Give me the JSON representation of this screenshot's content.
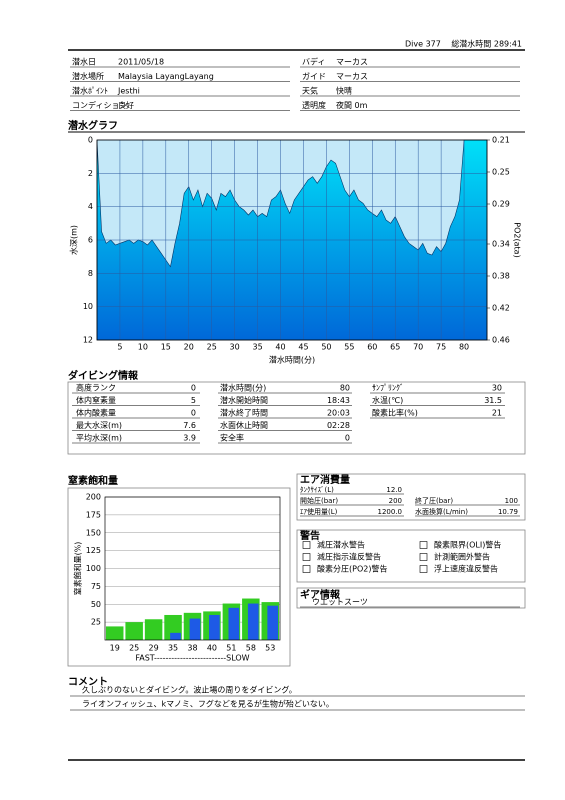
{
  "header": {
    "dive": "Dive 377",
    "total": "総潜水時間 289:41"
  },
  "info": {
    "left": [
      {
        "label": "潜水日",
        "value": "2011/05/18"
      },
      {
        "label": "潜水場所",
        "value": "Malaysia LayangLayang"
      },
      {
        "label": "潜水ﾎﾟｲﾝﾄ",
        "value": "Jesthi"
      },
      {
        "label": "コンディション",
        "value": "良好"
      }
    ],
    "right": [
      {
        "label": "バディ",
        "value": "マーカス"
      },
      {
        "label": "ガイド",
        "value": "マーカス"
      },
      {
        "label": "天気",
        "value": "快晴"
      },
      {
        "label": "透明度",
        "value": "夜間  0m"
      }
    ]
  },
  "dive_graph": {
    "type": "area",
    "title": "潜水グラフ",
    "xlabel": "潜水時間(分)",
    "ylabel": "水深(m)",
    "y2label": "PO2(ata)",
    "invert_y": true,
    "grid": true,
    "x": [
      0,
      1,
      2,
      3,
      4,
      5,
      6,
      7,
      8,
      9,
      10,
      11,
      12,
      13,
      14,
      15,
      16,
      17,
      18,
      19,
      20,
      21,
      22,
      23,
      24,
      25,
      26,
      27,
      28,
      29,
      30,
      31,
      32,
      33,
      34,
      35,
      36,
      37,
      38,
      39,
      40,
      41,
      42,
      43,
      44,
      45,
      46,
      47,
      48,
      49,
      50,
      51,
      52,
      53,
      54,
      55,
      56,
      57,
      58,
      59,
      60,
      61,
      62,
      63,
      64,
      65,
      66,
      67,
      68,
      69,
      70,
      71,
      72,
      73,
      74,
      75,
      76,
      77,
      78,
      79,
      80,
      81,
      82,
      83,
      84,
      85
    ],
    "values": [
      0,
      5.5,
      6.2,
      6.0,
      6.3,
      6.2,
      6.1,
      6.0,
      6.2,
      6.0,
      6.1,
      6.3,
      6.0,
      6.4,
      6.8,
      7.2,
      7.6,
      6.2,
      5.0,
      3.2,
      2.8,
      3.6,
      3.0,
      4.0,
      3.2,
      3.5,
      4.2,
      3.2,
      3.4,
      3.0,
      3.6,
      4.0,
      4.2,
      4.5,
      4.2,
      4.6,
      4.4,
      4.6,
      3.6,
      3.4,
      3.0,
      3.8,
      4.4,
      3.6,
      3.2,
      2.8,
      2.4,
      2.2,
      2.6,
      2.2,
      1.6,
      1.2,
      1.4,
      2.2,
      3.0,
      3.4,
      3.0,
      3.6,
      3.8,
      4.2,
      4.4,
      4.6,
      4.2,
      4.8,
      5.0,
      4.6,
      5.2,
      5.8,
      6.2,
      6.4,
      6.6,
      6.2,
      6.8,
      6.9,
      6.4,
      6.7,
      6.2,
      5.2,
      4.6,
      3.6,
      0,
      0,
      0,
      0,
      0,
      0
    ],
    "xlim": [
      0,
      85
    ],
    "xticks": [
      5,
      10,
      15,
      20,
      25,
      30,
      35,
      40,
      45,
      50,
      55,
      60,
      65,
      70,
      75,
      80
    ],
    "ylim": [
      0,
      12
    ],
    "yticks": [
      0,
      2,
      4,
      6,
      8,
      10,
      12
    ],
    "y2lim": [
      0.21,
      0.46
    ],
    "y2ticks": [
      0.21,
      0.25,
      0.29,
      0.34,
      0.38,
      0.42,
      0.46
    ]
  },
  "dive_info": {
    "title": "ダイビング情報",
    "columns": [
      [
        {
          "label": "高度ランク",
          "value": 0
        },
        {
          "label": "体内窒素量",
          "value": 5
        },
        {
          "label": "体内酸素量",
          "value": 0
        },
        {
          "label": "最大水深(m)",
          "value": 7.6
        },
        {
          "label": "平均水深(m)",
          "value": 3.9
        }
      ],
      [
        {
          "label": "潜水時間(分)",
          "value": 80
        },
        {
          "label": "潜水開始時間",
          "value": "18:43"
        },
        {
          "label": "潜水終了時間",
          "value": "20:03"
        },
        {
          "label": "水面休止時間",
          "value": "02:28"
        },
        {
          "label": "安全率",
          "value": 0
        }
      ],
      [
        {
          "label": "ｻﾝﾌﾟﾘﾝｸﾞ",
          "value": 30
        },
        {
          "label": "水温(℃)",
          "value": 31.5
        },
        {
          "label": "酸素比率(%)",
          "value": 21
        }
      ]
    ]
  },
  "nitrogen": {
    "type": "bar",
    "title": "窒素飽和量",
    "ylabel": "窒素飽和量(%)",
    "xlabel": "FAST-------------------------SLOW",
    "categories": [
      "19",
      "25",
      "29",
      "35",
      "38",
      "40",
      "51",
      "58",
      "53"
    ],
    "series": [
      {
        "color": "#33cc22",
        "values": [
          19,
          25,
          29,
          35,
          38,
          40,
          51,
          58,
          53
        ]
      },
      {
        "color": "#1e5ae6",
        "values": [
          0,
          0,
          0,
          10,
          30,
          35,
          45,
          51,
          48
        ]
      }
    ],
    "ylim": [
      0,
      200
    ],
    "yticks": [
      25,
      50,
      75,
      100,
      125,
      150,
      175,
      200
    ],
    "grid": true
  },
  "air": {
    "title": "エア消費量",
    "items": [
      {
        "label": "ﾀﾝｸｻｲｽﾞ(L)",
        "value": "12.0"
      },
      {
        "label": "開始圧(bar)",
        "value": 200
      },
      {
        "label": "終了圧(bar)",
        "value": 100
      },
      {
        "label": "ｴｱ使用量(L)",
        "value": "1200.0"
      },
      {
        "label": "水面換算(L/min)",
        "value": 10.79
      }
    ]
  },
  "warnings": {
    "title": "警告",
    "items": [
      "減圧潜水警告",
      "酸素限界(OLI)警告",
      "減圧指示違反警告",
      "計測範囲外警告",
      "酸素分圧(PO2)警告",
      "浮上速度違反警告"
    ]
  },
  "gear": {
    "title": "ギア情報",
    "items": [
      "ウエットスーツ"
    ]
  },
  "comment": {
    "title": "コメント",
    "lines": [
      "久しぶりのないとダイビング。波止場の周りをダイビング。",
      "ライオンフィッシュ、kマノミ、フグなどを見るが生物が殆どいない。"
    ]
  }
}
